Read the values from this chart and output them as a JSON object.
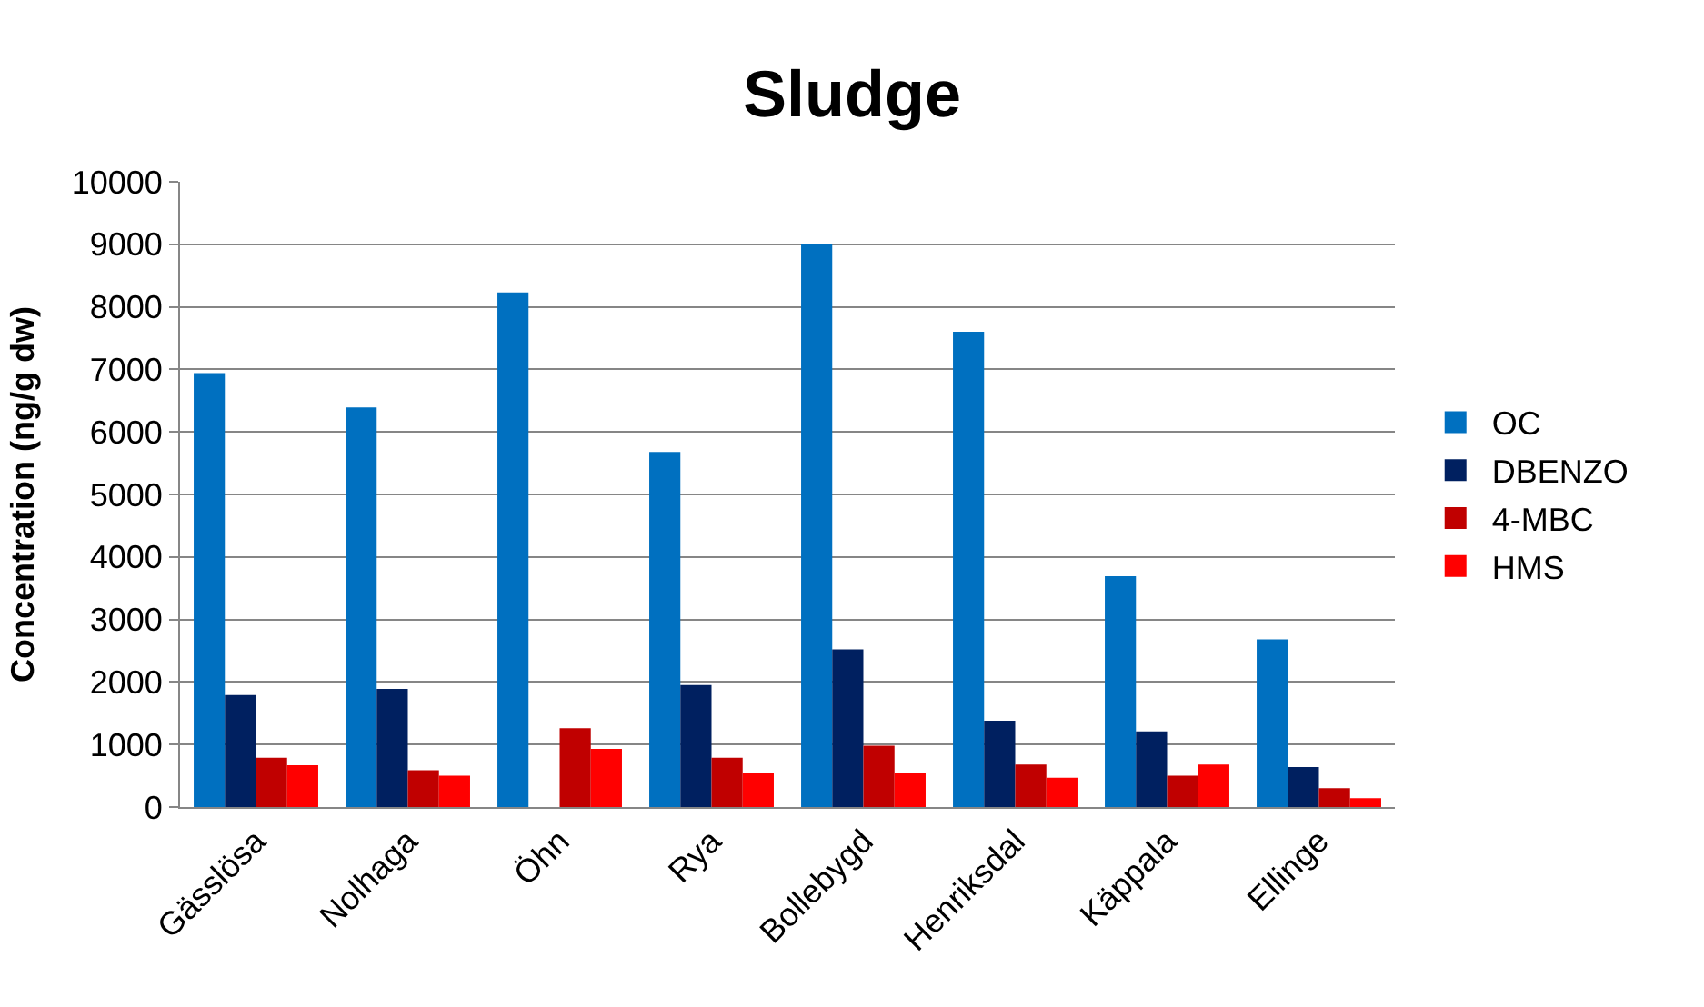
{
  "chart_data": {
    "type": "bar",
    "title": "Sludge",
    "ylabel": "Concentration (ng/g dw)",
    "categories": [
      "Gässlösa",
      "Nolhaga",
      "Öhn",
      "Rya",
      "Bollebygd",
      "Henriksdal",
      "Käppala",
      "Ellinge"
    ],
    "series": [
      {
        "name": "OC",
        "color": "#0070c0",
        "values": [
          6940,
          6390,
          8230,
          5680,
          9010,
          7600,
          3690,
          2680
        ]
      },
      {
        "name": "DBENZO",
        "color": "#002060",
        "values": [
          1790,
          1890,
          null,
          1950,
          2520,
          1380,
          1210,
          640
        ]
      },
      {
        "name": "4-MBC",
        "color": "#c00000",
        "values": [
          790,
          590,
          1260,
          790,
          980,
          680,
          500,
          300
        ]
      },
      {
        "name": "HMS",
        "color": "#ff0000",
        "values": [
          670,
          500,
          930,
          550,
          550,
          470,
          680,
          140
        ]
      }
    ],
    "ylim": [
      0,
      10000
    ],
    "yticks": [
      0,
      1000,
      2000,
      3000,
      4000,
      5000,
      6000,
      7000,
      8000,
      9000,
      10000
    ],
    "grid": "y",
    "legend": "right"
  }
}
